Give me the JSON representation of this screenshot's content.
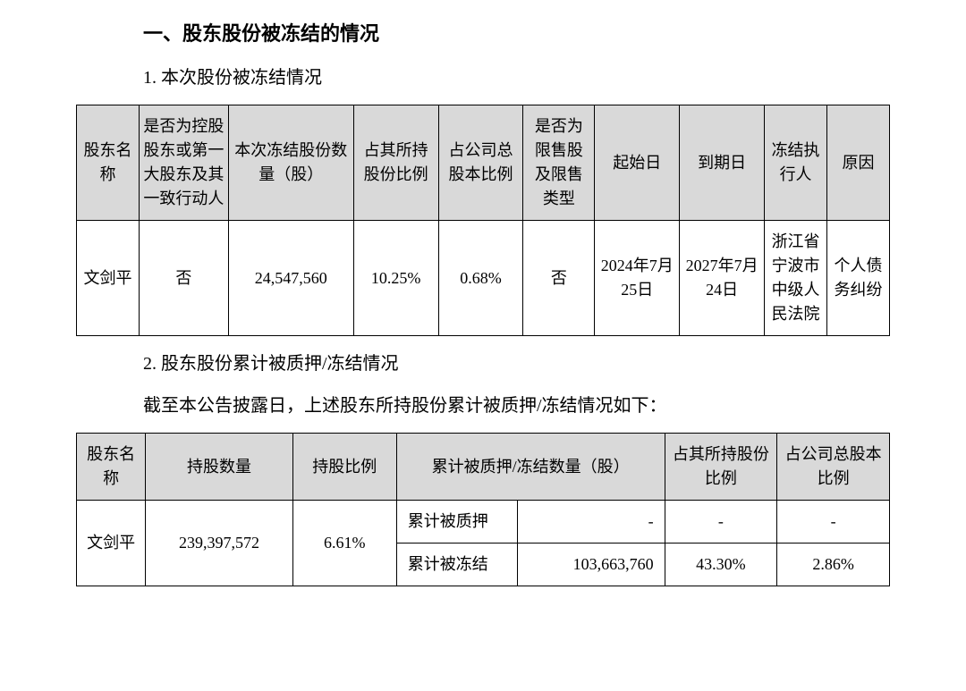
{
  "section_title": "一、股东股份被冻结的情况",
  "sub1_title": "1.  本次股份被冻结情况",
  "sub2_title": "2.  股东股份累计被质押/冻结情况",
  "body_line": "截至本公告披露日，上述股东所持股份累计被质押/冻结情况如下：",
  "table1": {
    "background_color": "#d9d9d9",
    "border_color": "#000000",
    "header_fontsize": 18,
    "cell_fontsize": 18,
    "columns": [
      "股东名称",
      "是否为控股股东或第一大股东及其一致行动人",
      "本次冻结股份数量（股）",
      "占其所持股份比例",
      "占公司总股本比例",
      "是否为限售股及限售类型",
      "起始日",
      "到期日",
      "冻结执行人",
      "原因"
    ],
    "row": {
      "name": "文剑平",
      "is_controlling": "否",
      "frozen_qty": "24,547,560",
      "pct_held": "10.25%",
      "pct_total": "0.68%",
      "is_restricted": "否",
      "start_date": "2024年7月25日",
      "end_date": "2027年7月24日",
      "executor": "浙江省宁波市中级人民法院",
      "reason": "个人债务纠纷"
    }
  },
  "table2": {
    "background_color": "#d9d9d9",
    "border_color": "#000000",
    "header_fontsize": 18,
    "cell_fontsize": 18,
    "columns": [
      "股东名称",
      "持股数量",
      "持股比例",
      "累计被质押/冻结数量（股）",
      "占其所持股份比例",
      "占公司总股本比例"
    ],
    "row": {
      "name": "文剑平",
      "shares_held": "239,397,572",
      "holding_pct": "6.61%",
      "pledged_label": "累计被质押",
      "pledged_qty": "-",
      "pledged_pct_held": "-",
      "pledged_pct_total": "-",
      "frozen_label": "累计被冻结",
      "frozen_qty": "103,663,760",
      "frozen_pct_held": "43.30%",
      "frozen_pct_total": "2.86%"
    }
  }
}
